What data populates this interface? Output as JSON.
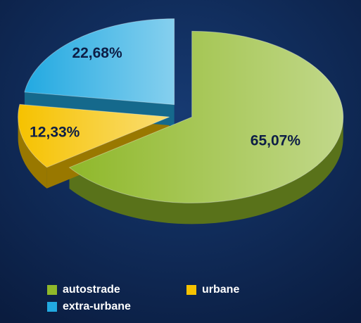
{
  "chart_data": {
    "type": "pie",
    "categories": [
      "autostrade",
      "urbane",
      "extra-urbane"
    ],
    "values": [
      65.07,
      12.33,
      22.68
    ],
    "value_labels": [
      "65,07%",
      "12,33%",
      "22,68%"
    ],
    "colors": [
      "#8fb82a",
      "#f6c200",
      "#22a9e1"
    ],
    "legend": "bottom"
  }
}
